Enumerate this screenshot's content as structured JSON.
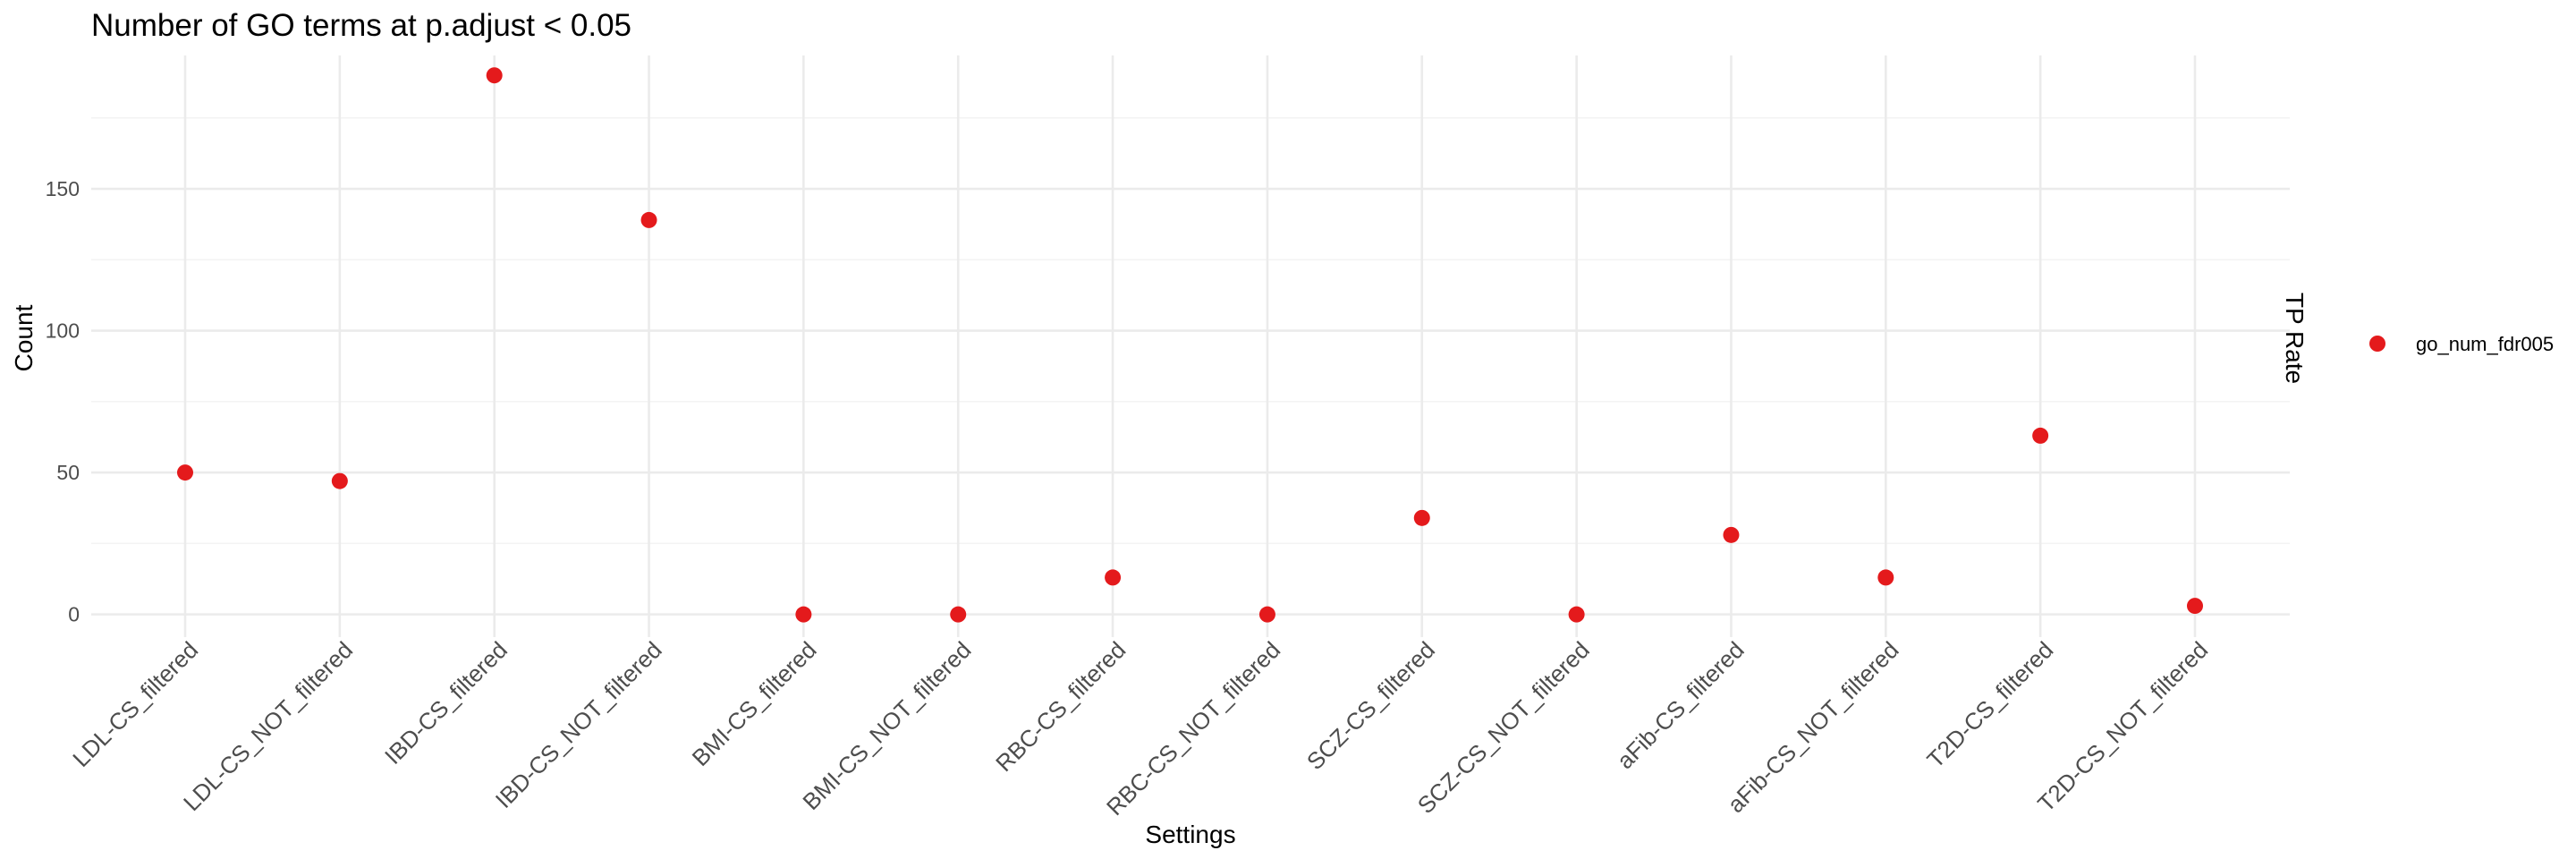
{
  "chart_data": {
    "type": "scatter",
    "title": "Number of GO terms at p.adjust < 0.05",
    "xlabel": "Settings",
    "ylabel": "Count",
    "legend_title": "TP Rate",
    "legend_position": "right",
    "grid": true,
    "ylim": [
      -8,
      197
    ],
    "yticks": [
      0,
      50,
      100,
      150
    ],
    "categories": [
      "LDL-CS_filtered",
      "LDL-CS_NOT_filtered",
      "IBD-CS_filtered",
      "IBD-CS_NOT_filtered",
      "BMI-CS_filtered",
      "BMI-CS_NOT_filtered",
      "RBC-CS_filtered",
      "RBC-CS_NOT_filtered",
      "SCZ-CS_filtered",
      "SCZ-CS_NOT_filtered",
      "aFib-CS_filtered",
      "aFib-CS_NOT_filtered",
      "T2D-CS_filtered",
      "T2D-CS_NOT_filtered"
    ],
    "series": [
      {
        "name": "go_num_fdr005",
        "color": "#e41a1c",
        "values": [
          50,
          47,
          190,
          139,
          0,
          0,
          13,
          0,
          34,
          0,
          28,
          13,
          63,
          3
        ]
      }
    ]
  }
}
